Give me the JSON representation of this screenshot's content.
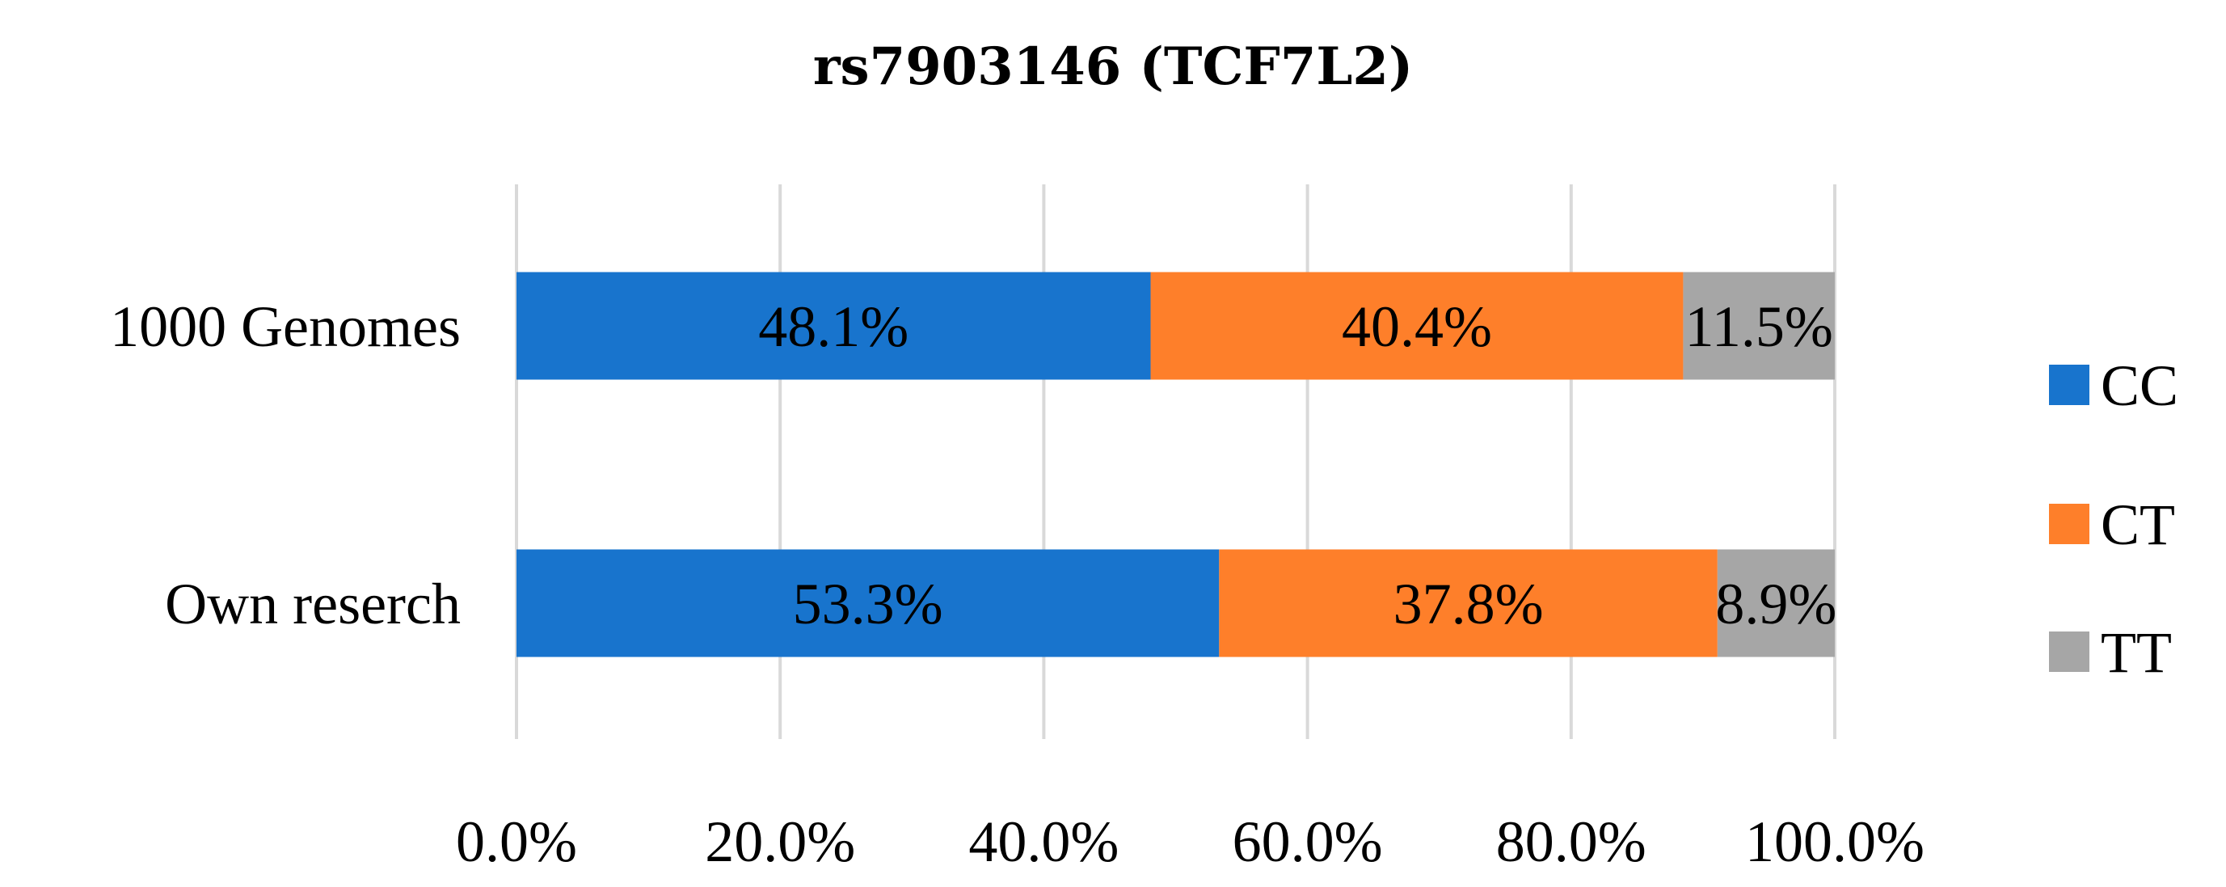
{
  "chart_data": {
    "type": "bar",
    "orientation": "horizontal",
    "stacked": true,
    "title": "rs7903146 (TCF7L2)",
    "categories": [
      "1000 Genomes",
      "Own reserch"
    ],
    "series": [
      {
        "name": "CC",
        "values": [
          48.1,
          53.3
        ],
        "labels": [
          "48.1%",
          "53.3%"
        ],
        "color": "#1874cd"
      },
      {
        "name": "CT",
        "values": [
          40.4,
          37.8
        ],
        "labels": [
          "40.4%",
          "37.8%"
        ],
        "color": "#fe7f2a"
      },
      {
        "name": "TT",
        "values": [
          11.5,
          8.9
        ],
        "labels": [
          "11.5%",
          "8.9%"
        ],
        "color": "#a6a6a6"
      }
    ],
    "xlim": [
      0,
      100
    ],
    "xticks": [
      0,
      20,
      40,
      60,
      80,
      100
    ],
    "xtick_labels": [
      "0.0%",
      "20.0%",
      "40.0%",
      "60.0%",
      "80.0%",
      "100.0%"
    ],
    "grid": true,
    "legend_position": "right"
  }
}
